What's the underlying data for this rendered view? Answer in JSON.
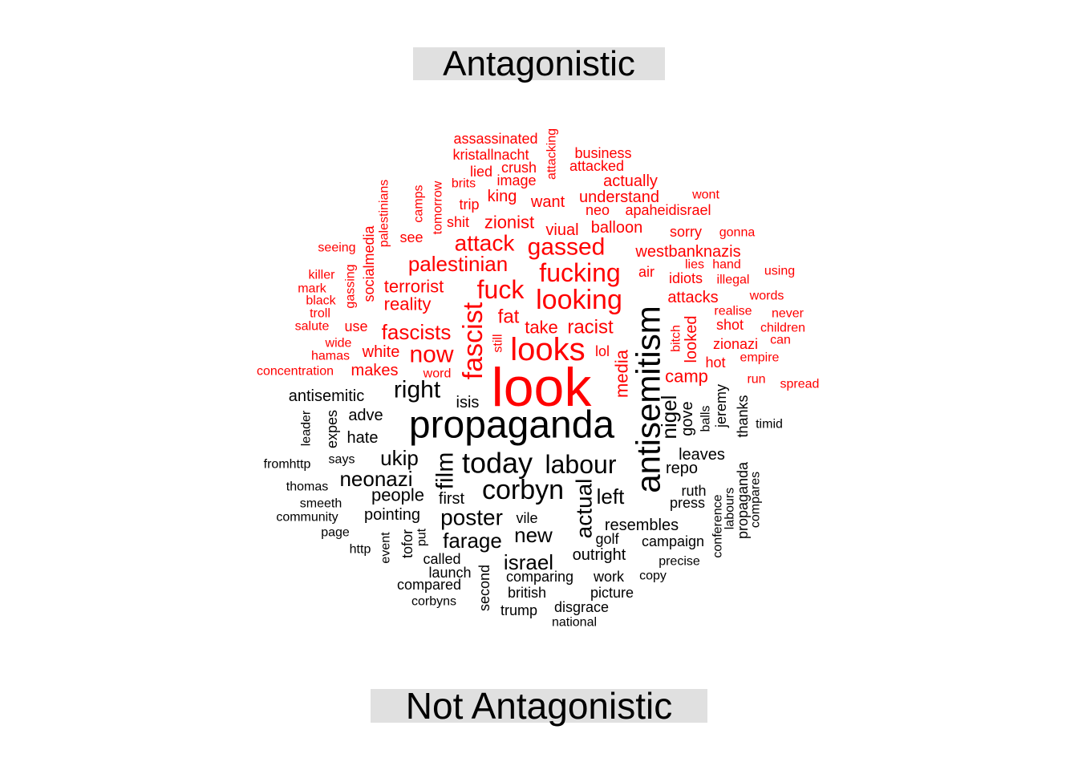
{
  "chart_data": {
    "type": "comparison-wordcloud",
    "groups": [
      {
        "name": "Antagonistic",
        "color": "#ff0000"
      },
      {
        "name": "Not Antagonistic",
        "color": "#000000"
      }
    ],
    "words": [
      {
        "w": "look",
        "g": 0,
        "s": 68
      },
      {
        "w": "antisemitism",
        "g": 1,
        "s": 42,
        "r": 1
      },
      {
        "w": "propaganda",
        "g": 1,
        "s": 48
      },
      {
        "w": "looks",
        "g": 0,
        "s": 40
      },
      {
        "w": "fascist",
        "g": 0,
        "s": 34,
        "r": 1
      },
      {
        "w": "looking",
        "g": 0,
        "s": 34
      },
      {
        "w": "fucking",
        "g": 0,
        "s": 32
      },
      {
        "w": "today",
        "g": 1,
        "s": 36
      },
      {
        "w": "corbyn",
        "g": 1,
        "s": 34
      },
      {
        "w": "labour",
        "g": 1,
        "s": 32
      },
      {
        "w": "gassed",
        "g": 0,
        "s": 30
      },
      {
        "w": "fuck",
        "g": 0,
        "s": 32
      },
      {
        "w": "attack",
        "g": 0,
        "s": 28
      },
      {
        "w": "palestinian",
        "g": 0,
        "s": 26
      },
      {
        "w": "now",
        "g": 0,
        "s": 30
      },
      {
        "w": "right",
        "g": 1,
        "s": 30
      },
      {
        "w": "fascists",
        "g": 0,
        "s": 26
      },
      {
        "w": "film",
        "g": 1,
        "s": 30,
        "r": 1
      },
      {
        "w": "actual",
        "g": 1,
        "s": 28,
        "r": 1
      },
      {
        "w": "poster",
        "g": 1,
        "s": 28
      },
      {
        "w": "neonazi",
        "g": 1,
        "s": 26
      },
      {
        "w": "ukip",
        "g": 1,
        "s": 26
      },
      {
        "w": "new",
        "g": 1,
        "s": 26
      },
      {
        "w": "nigel",
        "g": 1,
        "s": 26,
        "r": 1
      },
      {
        "w": "left",
        "g": 1,
        "s": 26
      },
      {
        "w": "israel",
        "g": 1,
        "s": 26
      },
      {
        "w": "farage",
        "g": 1,
        "s": 26
      },
      {
        "w": "racist",
        "g": 0,
        "s": 24
      },
      {
        "w": "fat",
        "g": 0,
        "s": 24
      },
      {
        "w": "take",
        "g": 0,
        "s": 22
      },
      {
        "w": "terrorist",
        "g": 0,
        "s": 22
      },
      {
        "w": "reality",
        "g": 0,
        "s": 22
      },
      {
        "w": "zionist",
        "g": 0,
        "s": 22
      },
      {
        "w": "balloon",
        "g": 0,
        "s": 20
      },
      {
        "w": "viual",
        "g": 0,
        "s": 20
      },
      {
        "w": "westbanknazis",
        "g": 0,
        "s": 20
      },
      {
        "w": "camp",
        "g": 0,
        "s": 22
      },
      {
        "w": "attacks",
        "g": 0,
        "s": 20
      },
      {
        "w": "media",
        "g": 0,
        "s": 22,
        "r": 1
      },
      {
        "w": "looked",
        "g": 0,
        "s": 20,
        "r": 1
      },
      {
        "w": "white",
        "g": 0,
        "s": 20
      },
      {
        "w": "makes",
        "g": 0,
        "s": 20
      },
      {
        "w": "people",
        "g": 1,
        "s": 22
      },
      {
        "w": "leaves",
        "g": 1,
        "s": 20
      },
      {
        "w": "repo",
        "g": 1,
        "s": 20
      },
      {
        "w": "resembles",
        "g": 1,
        "s": 20
      },
      {
        "w": "outright",
        "g": 1,
        "s": 20
      },
      {
        "w": "first",
        "g": 1,
        "s": 20
      },
      {
        "w": "pointing",
        "g": 1,
        "s": 20
      },
      {
        "w": "adve",
        "g": 1,
        "s": 20
      },
      {
        "w": "hate",
        "g": 1,
        "s": 20
      },
      {
        "w": "antisemitic",
        "g": 1,
        "s": 20
      },
      {
        "w": "gove",
        "g": 1,
        "s": 20,
        "r": 1
      },
      {
        "w": "isis",
        "g": 1,
        "s": 20
      },
      {
        "w": "want",
        "g": 0,
        "s": 20
      },
      {
        "w": "king",
        "g": 0,
        "s": 20
      },
      {
        "w": "understand",
        "g": 0,
        "s": 20
      },
      {
        "w": "actually",
        "g": 0,
        "s": 20
      },
      {
        "w": "crush",
        "g": 0,
        "s": 18
      },
      {
        "w": "attacked",
        "g": 0,
        "s": 18
      },
      {
        "w": "image",
        "g": 0,
        "s": 18
      },
      {
        "w": "lied",
        "g": 0,
        "s": 18
      },
      {
        "w": "trip",
        "g": 0,
        "s": 18
      },
      {
        "w": "shit",
        "g": 0,
        "s": 18
      },
      {
        "w": "neo",
        "g": 0,
        "s": 18
      },
      {
        "w": "apaheidisrael",
        "g": 0,
        "s": 18
      },
      {
        "w": "sorry",
        "g": 0,
        "s": 18
      },
      {
        "w": "air",
        "g": 0,
        "s": 18
      },
      {
        "w": "idiots",
        "g": 0,
        "s": 18
      },
      {
        "w": "zionazi",
        "g": 0,
        "s": 18
      },
      {
        "w": "hot",
        "g": 0,
        "s": 18
      },
      {
        "w": "shot",
        "g": 0,
        "s": 18
      },
      {
        "w": "lol",
        "g": 0,
        "s": 18
      },
      {
        "w": "use",
        "g": 0,
        "s": 18
      },
      {
        "w": "see",
        "g": 0,
        "s": 18
      },
      {
        "w": "ukip",
        "g": 0,
        "s": 0
      },
      {
        "w": "business",
        "g": 0,
        "s": 18
      },
      {
        "w": "kristallnacht",
        "g": 0,
        "s": 18
      },
      {
        "w": "assassinated",
        "g": 0,
        "s": 18
      },
      {
        "w": "brits",
        "g": 0,
        "s": 16
      },
      {
        "w": "gonna",
        "g": 0,
        "s": 16
      },
      {
        "w": "wont",
        "g": 0,
        "s": 16
      },
      {
        "w": "illegal",
        "g": 0,
        "s": 16
      },
      {
        "w": "realise",
        "g": 0,
        "s": 16
      },
      {
        "w": "empire",
        "g": 0,
        "s": 16
      },
      {
        "w": "lies",
        "g": 0,
        "s": 16
      },
      {
        "w": "hand",
        "g": 0,
        "s": 16
      },
      {
        "w": "word",
        "g": 0,
        "s": 16
      },
      {
        "w": "run",
        "g": 0,
        "s": 16
      },
      {
        "w": "spread",
        "g": 0,
        "s": 16
      },
      {
        "w": "using",
        "g": 0,
        "s": 16
      },
      {
        "w": "words",
        "g": 0,
        "s": 16
      },
      {
        "w": "never",
        "g": 0,
        "s": 16
      },
      {
        "w": "children",
        "g": 0,
        "s": 16
      },
      {
        "w": "can",
        "g": 0,
        "s": 16
      },
      {
        "w": "seeing",
        "g": 0,
        "s": 16
      },
      {
        "w": "killer",
        "g": 0,
        "s": 16
      },
      {
        "w": "mark",
        "g": 0,
        "s": 16
      },
      {
        "w": "black",
        "g": 0,
        "s": 16
      },
      {
        "w": "troll",
        "g": 0,
        "s": 16
      },
      {
        "w": "salute",
        "g": 0,
        "s": 16
      },
      {
        "w": "wide",
        "g": 0,
        "s": 16
      },
      {
        "w": "hamas",
        "g": 0,
        "s": 16
      },
      {
        "w": "concentration",
        "g": 0,
        "s": 16
      },
      {
        "w": "camps",
        "g": 0,
        "s": 16,
        "r": 1
      },
      {
        "w": "tomorrow",
        "g": 0,
        "s": 16,
        "r": 1
      },
      {
        "w": "palestinians",
        "g": 0,
        "s": 16,
        "r": 1
      },
      {
        "w": "socialmedia",
        "g": 0,
        "s": 18,
        "r": 1
      },
      {
        "w": "gassing",
        "g": 0,
        "s": 16,
        "r": 1
      },
      {
        "w": "attacking",
        "g": 0,
        "s": 16,
        "r": 1
      },
      {
        "w": "still",
        "g": 0,
        "s": 16,
        "r": 1
      },
      {
        "w": "bitch",
        "g": 0,
        "s": 16,
        "r": 1
      },
      {
        "w": "jeremy",
        "g": 1,
        "s": 18,
        "r": 1
      },
      {
        "w": "balls",
        "g": 1,
        "s": 16,
        "r": 1
      },
      {
        "w": "thanks",
        "g": 1,
        "s": 18,
        "r": 1
      },
      {
        "w": "propaganda",
        "g": 1,
        "s": 18,
        "r": 1
      },
      {
        "w": "compares",
        "g": 1,
        "s": 16,
        "r": 1
      },
      {
        "w": "labours",
        "g": 1,
        "s": 16,
        "r": 1
      },
      {
        "w": "conference",
        "g": 1,
        "s": 16,
        "r": 1
      },
      {
        "w": "expes",
        "g": 1,
        "s": 18,
        "r": 1
      },
      {
        "w": "leader",
        "g": 1,
        "s": 16,
        "r": 1
      },
      {
        "w": "event",
        "g": 1,
        "s": 16,
        "r": 1
      },
      {
        "w": "tofor",
        "g": 1,
        "s": 18,
        "r": 1
      },
      {
        "w": "put",
        "g": 1,
        "s": 16,
        "r": 1
      },
      {
        "w": "second",
        "g": 1,
        "s": 18,
        "r": 1
      },
      {
        "w": "timid",
        "g": 1,
        "s": 16
      },
      {
        "w": "ruth",
        "g": 1,
        "s": 18
      },
      {
        "w": "press",
        "g": 1,
        "s": 18
      },
      {
        "w": "vile",
        "g": 1,
        "s": 18
      },
      {
        "w": "golf",
        "g": 1,
        "s": 18
      },
      {
        "w": "campaign",
        "g": 1,
        "s": 18
      },
      {
        "w": "precise",
        "g": 1,
        "s": 16
      },
      {
        "w": "copy",
        "g": 1,
        "s": 16
      },
      {
        "w": "work",
        "g": 1,
        "s": 18
      },
      {
        "w": "picture",
        "g": 1,
        "s": 18
      },
      {
        "w": "comparing",
        "g": 1,
        "s": 18
      },
      {
        "w": "british",
        "g": 1,
        "s": 18
      },
      {
        "w": "disgrace",
        "g": 1,
        "s": 18
      },
      {
        "w": "trump",
        "g": 1,
        "s": 18
      },
      {
        "w": "national",
        "g": 1,
        "s": 16
      },
      {
        "w": "called",
        "g": 1,
        "s": 18
      },
      {
        "w": "launch",
        "g": 1,
        "s": 18
      },
      {
        "w": "compared",
        "g": 1,
        "s": 18
      },
      {
        "w": "corbyns",
        "g": 1,
        "s": 16
      },
      {
        "w": "says",
        "g": 1,
        "s": 16
      },
      {
        "w": "fromhttp",
        "g": 1,
        "s": 16
      },
      {
        "w": "thomas",
        "g": 1,
        "s": 16
      },
      {
        "w": "smeeth",
        "g": 1,
        "s": 16
      },
      {
        "w": "community",
        "g": 1,
        "s": 16
      },
      {
        "w": "page",
        "g": 1,
        "s": 16
      },
      {
        "w": "http",
        "g": 1,
        "s": 16
      }
    ]
  }
}
